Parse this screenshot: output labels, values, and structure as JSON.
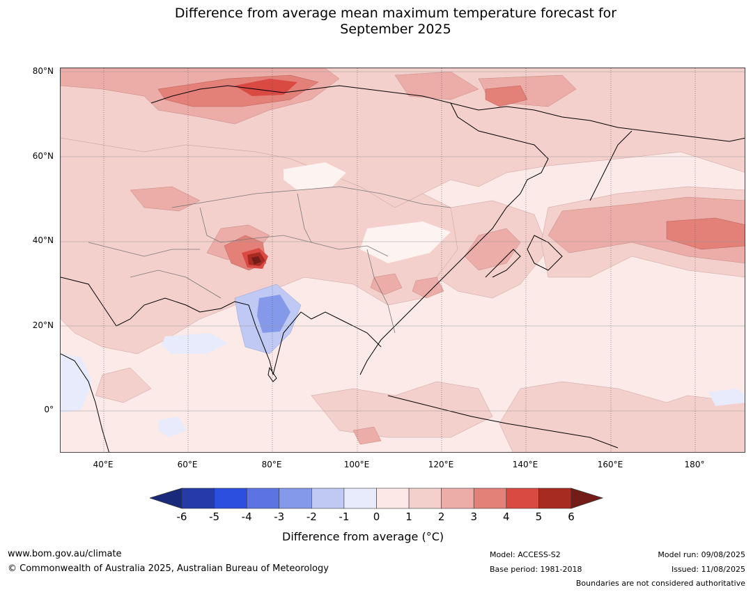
{
  "title": {
    "line1": "Difference from average mean maximum temperature forecast for",
    "line2": "September 2025"
  },
  "map": {
    "lat_labels": [
      "80°N",
      "60°N",
      "40°N",
      "20°N",
      "0°"
    ],
    "lon_labels": [
      "40°E",
      "60°E",
      "80°E",
      "100°E",
      "120°E",
      "140°E",
      "160°E",
      "180°"
    ],
    "lat_range": [
      -10,
      80
    ],
    "lon_range": [
      30,
      191
    ]
  },
  "colorbar": {
    "ticks": [
      "-6",
      "-5",
      "-4",
      "-3",
      "-2",
      "-1",
      "0",
      "1",
      "2",
      "3",
      "4",
      "5",
      "6"
    ],
    "colors": [
      "#263aa8",
      "#2d4fdf",
      "#5b73e3",
      "#8599eb",
      "#bfc9f3",
      "#e8ebfb",
      "#fce9e7",
      "#f4d0cd",
      "#ecaca7",
      "#e38078",
      "#d84a42",
      "#a82b22"
    ],
    "low_extend_color": "#1a2a7a",
    "high_extend_color": "#741c17",
    "label": "Difference from average (°C)"
  },
  "footer": {
    "website": "www.bom.gov.au/climate",
    "copyright": "© Commonwealth of Australia 2025, Australian Bureau of Meteorology",
    "model": "Model: ACCESS-S2",
    "base_period": "Base period: 1981-2018",
    "model_run": "Model run: 09/08/2025",
    "issued": "Issued: 11/08/2025",
    "disclaimer": "Boundaries are not considered authoritative"
  }
}
